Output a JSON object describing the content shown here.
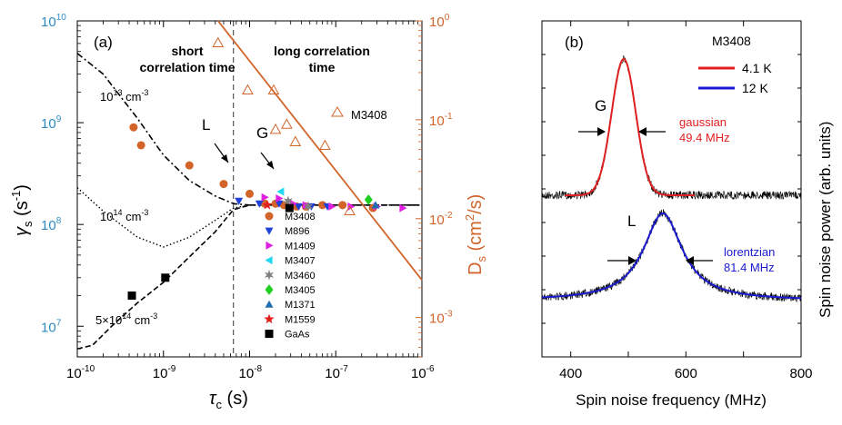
{
  "panel_a": {
    "label": "(a)",
    "region_short": [
      "short",
      "correlation time"
    ],
    "region_long": [
      "long correlation",
      "time"
    ],
    "x_ticks": [
      {
        "base": "10",
        "exp": "-10"
      },
      {
        "base": "10",
        "exp": "-9"
      },
      {
        "base": "10",
        "exp": "-8"
      },
      {
        "base": "10",
        "exp": "-7"
      },
      {
        "base": "10",
        "exp": "-6"
      }
    ],
    "y_left_ticks": [
      {
        "base": "10",
        "exp": "7"
      },
      {
        "base": "10",
        "exp": "8"
      },
      {
        "base": "10",
        "exp": "9"
      },
      {
        "base": "10",
        "exp": "10"
      }
    ],
    "y_right_ticks": [
      {
        "base": "10",
        "exp": "-3"
      },
      {
        "base": "10",
        "exp": "-2"
      },
      {
        "base": "10",
        "exp": "-1"
      },
      {
        "base": "10",
        "exp": "0"
      }
    ],
    "xlabel_main": "τ",
    "xlabel_sub": "c",
    "xlabel_unit": " (s)",
    "ylabel_left": {
      "main": "γ",
      "sub": "s",
      "unit": " (s",
      "sup": "-1",
      ")": ")"
    },
    "ylabel_right": {
      "main": "D",
      "sub": "s",
      "unit": " (cm",
      "sup": "2",
      "tail": "/s)"
    },
    "curve_labels": {
      "c13": {
        "base": "10",
        "exp": "13",
        "unit": " cm",
        "uexp": "-3"
      },
      "c14": {
        "base": "10",
        "exp": "14",
        "unit": " cm",
        "uexp": "-3"
      },
      "c5e14": {
        "base": "5×10",
        "exp": "14",
        "unit": " cm",
        "uexp": "-3"
      }
    },
    "arrow_label_L": "L",
    "arrow_label_G": "G",
    "m3408_label": "M3408",
    "colors": {
      "left_axis": "#2e8bc0",
      "right_axis": "#d2642a",
      "line": "#d2642a"
    }
  },
  "legend": [
    {
      "name": "M3408",
      "marker": "circle",
      "color": "#d2642a"
    },
    {
      "name": "M896",
      "marker": "triangle-down",
      "color": "#1f3fd6"
    },
    {
      "name": "M1409",
      "marker": "triangle-right",
      "color": "#e020e0"
    },
    {
      "name": "M3407",
      "marker": "triangle-left",
      "color": "#20d8f0"
    },
    {
      "name": "M3460",
      "marker": "star6",
      "color": "#808080"
    },
    {
      "name": "M3405",
      "marker": "diamond",
      "color": "#20d020"
    },
    {
      "name": "M1371",
      "marker": "triangle-up",
      "color": "#1f6fb0"
    },
    {
      "name": "M1559",
      "marker": "star5",
      "color": "#e02020"
    },
    {
      "name": "GaAs",
      "marker": "square",
      "color": "#000000"
    }
  ],
  "panel_b": {
    "label": "(b)",
    "sample": "M3408",
    "legend": [
      {
        "name": "4.1 K",
        "color": "#e02020"
      },
      {
        "name": "12 K",
        "color": "#1a1ad0"
      }
    ],
    "peak_G": "G",
    "peak_L": "L",
    "gauss_label": "gaussian",
    "gauss_width": "49.4 MHz",
    "lor_label": "lorentzian",
    "lor_width": "81.4 MHz",
    "x_ticks": [
      "400",
      "600",
      "800"
    ],
    "xlabel": "Spin noise frequency (MHz)",
    "ylabel": "Spin noise power (arb. units)"
  },
  "chart_data": [
    {
      "type": "scatter",
      "title": "",
      "xlabel": "τc (s)",
      "ylabel": "γs (s-1)",
      "y2label": "Ds (cm2/s)",
      "xscale": "log",
      "yscale": "log",
      "xlim": [
        1e-10,
        1e-06
      ],
      "ylim": [
        5000000.0,
        10000000000.0
      ],
      "y2lim": [
        0.0004,
        1
      ],
      "series": [
        {
          "name": "M3408",
          "axis": "left",
          "x": [
            4.5e-10,
            5.5e-10,
            2e-09,
            5e-09,
            1e-08,
            1.5e-08,
            2e-08,
            2.5e-08,
            3.5e-08,
            4.5e-08,
            7e-08,
            1.2e-07,
            2.7e-07
          ],
          "y": [
            900000000.0,
            600000000.0,
            380000000.0,
            250000000.0,
            200000000.0,
            160000000.0,
            160000000.0,
            155000000.0,
            150000000.0,
            150000000.0,
            155000000.0,
            155000000.0,
            145000000.0
          ]
        },
        {
          "name": "M896",
          "axis": "left",
          "x": [
            7.5e-09,
            1.3e-08,
            2.2e-08,
            3.7e-08,
            5.2e-08,
            8e-08
          ],
          "y": [
            170000000.0,
            160000000.0,
            160000000.0,
            150000000.0,
            150000000.0,
            150000000.0
          ]
        },
        {
          "name": "M1409",
          "axis": "left",
          "x": [
            1.5e-08,
            2.2e-08,
            3.2e-08,
            4.5e-08,
            9e-08,
            1.5e-07,
            3e-07,
            6e-07
          ],
          "y": [
            185000000.0,
            180000000.0,
            160000000.0,
            155000000.0,
            150000000.0,
            150000000.0,
            150000000.0,
            145000000.0
          ]
        },
        {
          "name": "M3407",
          "axis": "left",
          "x": [
            2.3e-08
          ],
          "y": [
            210000000.0
          ]
        },
        {
          "name": "M3460",
          "axis": "left",
          "x": [
            2.8e-08,
            4.8e-08
          ],
          "y": [
            170000000.0,
            150000000.0
          ]
        },
        {
          "name": "M3405",
          "axis": "left",
          "x": [
            2.4e-07
          ],
          "y": [
            175000000.0
          ]
        },
        {
          "name": "M1371",
          "axis": "left",
          "x": [
            2.9e-07
          ],
          "y": [
            155000000.0
          ]
        },
        {
          "name": "M1559",
          "axis": "left",
          "x": [
            1.6e-08
          ],
          "y": [
            155000000.0
          ]
        },
        {
          "name": "GaAs",
          "axis": "left",
          "x": [
            4.3e-10,
            1.05e-09,
            2.9e-08
          ],
          "y": [
            20000000.0,
            30000000.0,
            145000000.0
          ]
        },
        {
          "name": "M3408 Ds",
          "axis": "right",
          "marker": "open-triangle",
          "x": [
            4.3e-09,
            9.5e-09,
            1.9e-08,
            2e-08,
            2.7e-08,
            3.4e-08,
            7.5e-08,
            1.45e-07
          ],
          "y": [
            0.6,
            0.2,
            0.2,
            0.08,
            0.09,
            0.06,
            0.055,
            0.012
          ]
        },
        {
          "name": "Ds fit line",
          "axis": "right",
          "x": [
            4.3e-09,
            1e-06
          ],
          "y": [
            1,
            0.0024
          ]
        },
        {
          "name": "curve 1e13 cm-3",
          "axis": "left",
          "x": [
            1e-10,
            2e-10,
            5e-10,
            1e-09,
            2e-09,
            4e-09,
            6.5e-09,
            1e-08,
            1e-06
          ],
          "y": [
            4800000000.0,
            3000000000.0,
            1100000000.0,
            480000000.0,
            270000000.0,
            190000000.0,
            160000000.0,
            155000000.0,
            155000000.0
          ]
        },
        {
          "name": "curve 1e14 cm-3",
          "axis": "left",
          "x": [
            1e-10,
            2e-10,
            5e-10,
            1e-09,
            2e-09,
            4e-09,
            6.5e-09,
            1e-08,
            1e-06
          ],
          "y": [
            230000000.0,
            135000000.0,
            75000000.0,
            60000000.0,
            75000000.0,
            110000000.0,
            145000000.0,
            155000000.0,
            155000000.0
          ]
        },
        {
          "name": "curve 5e14 cm-3",
          "axis": "left",
          "x": [
            1e-10,
            1.5e-10,
            2.5e-10,
            5e-10,
            1e-09,
            2e-09,
            4e-09,
            6.5e-09,
            1e-08,
            1e-06
          ],
          "y": [
            6000000.0,
            6500000.0,
            10000000.0,
            17000000.0,
            27000000.0,
            48000000.0,
            85000000.0,
            140000000.0,
            155000000.0,
            155000000.0
          ]
        }
      ],
      "annotations": [
        "short correlation time",
        "long correlation time",
        "L",
        "G",
        "M3408"
      ],
      "vline_x": 6.5e-09
    },
    {
      "type": "line",
      "xlabel": "Spin noise frequency (MHz)",
      "ylabel": "Spin noise power (arb. units)",
      "xlim": [
        350,
        800
      ],
      "x_ticks": [
        400,
        600,
        800
      ],
      "series": [
        {
          "name": "4.1 K",
          "shape": "gaussian",
          "center": 492,
          "fwhm": 49.4,
          "fit_range": [
            390,
            615
          ]
        },
        {
          "name": "12 K",
          "shape": "lorentzian",
          "center": 560,
          "fwhm": 81.4,
          "fit_range": [
            350,
            800
          ]
        }
      ]
    }
  ]
}
